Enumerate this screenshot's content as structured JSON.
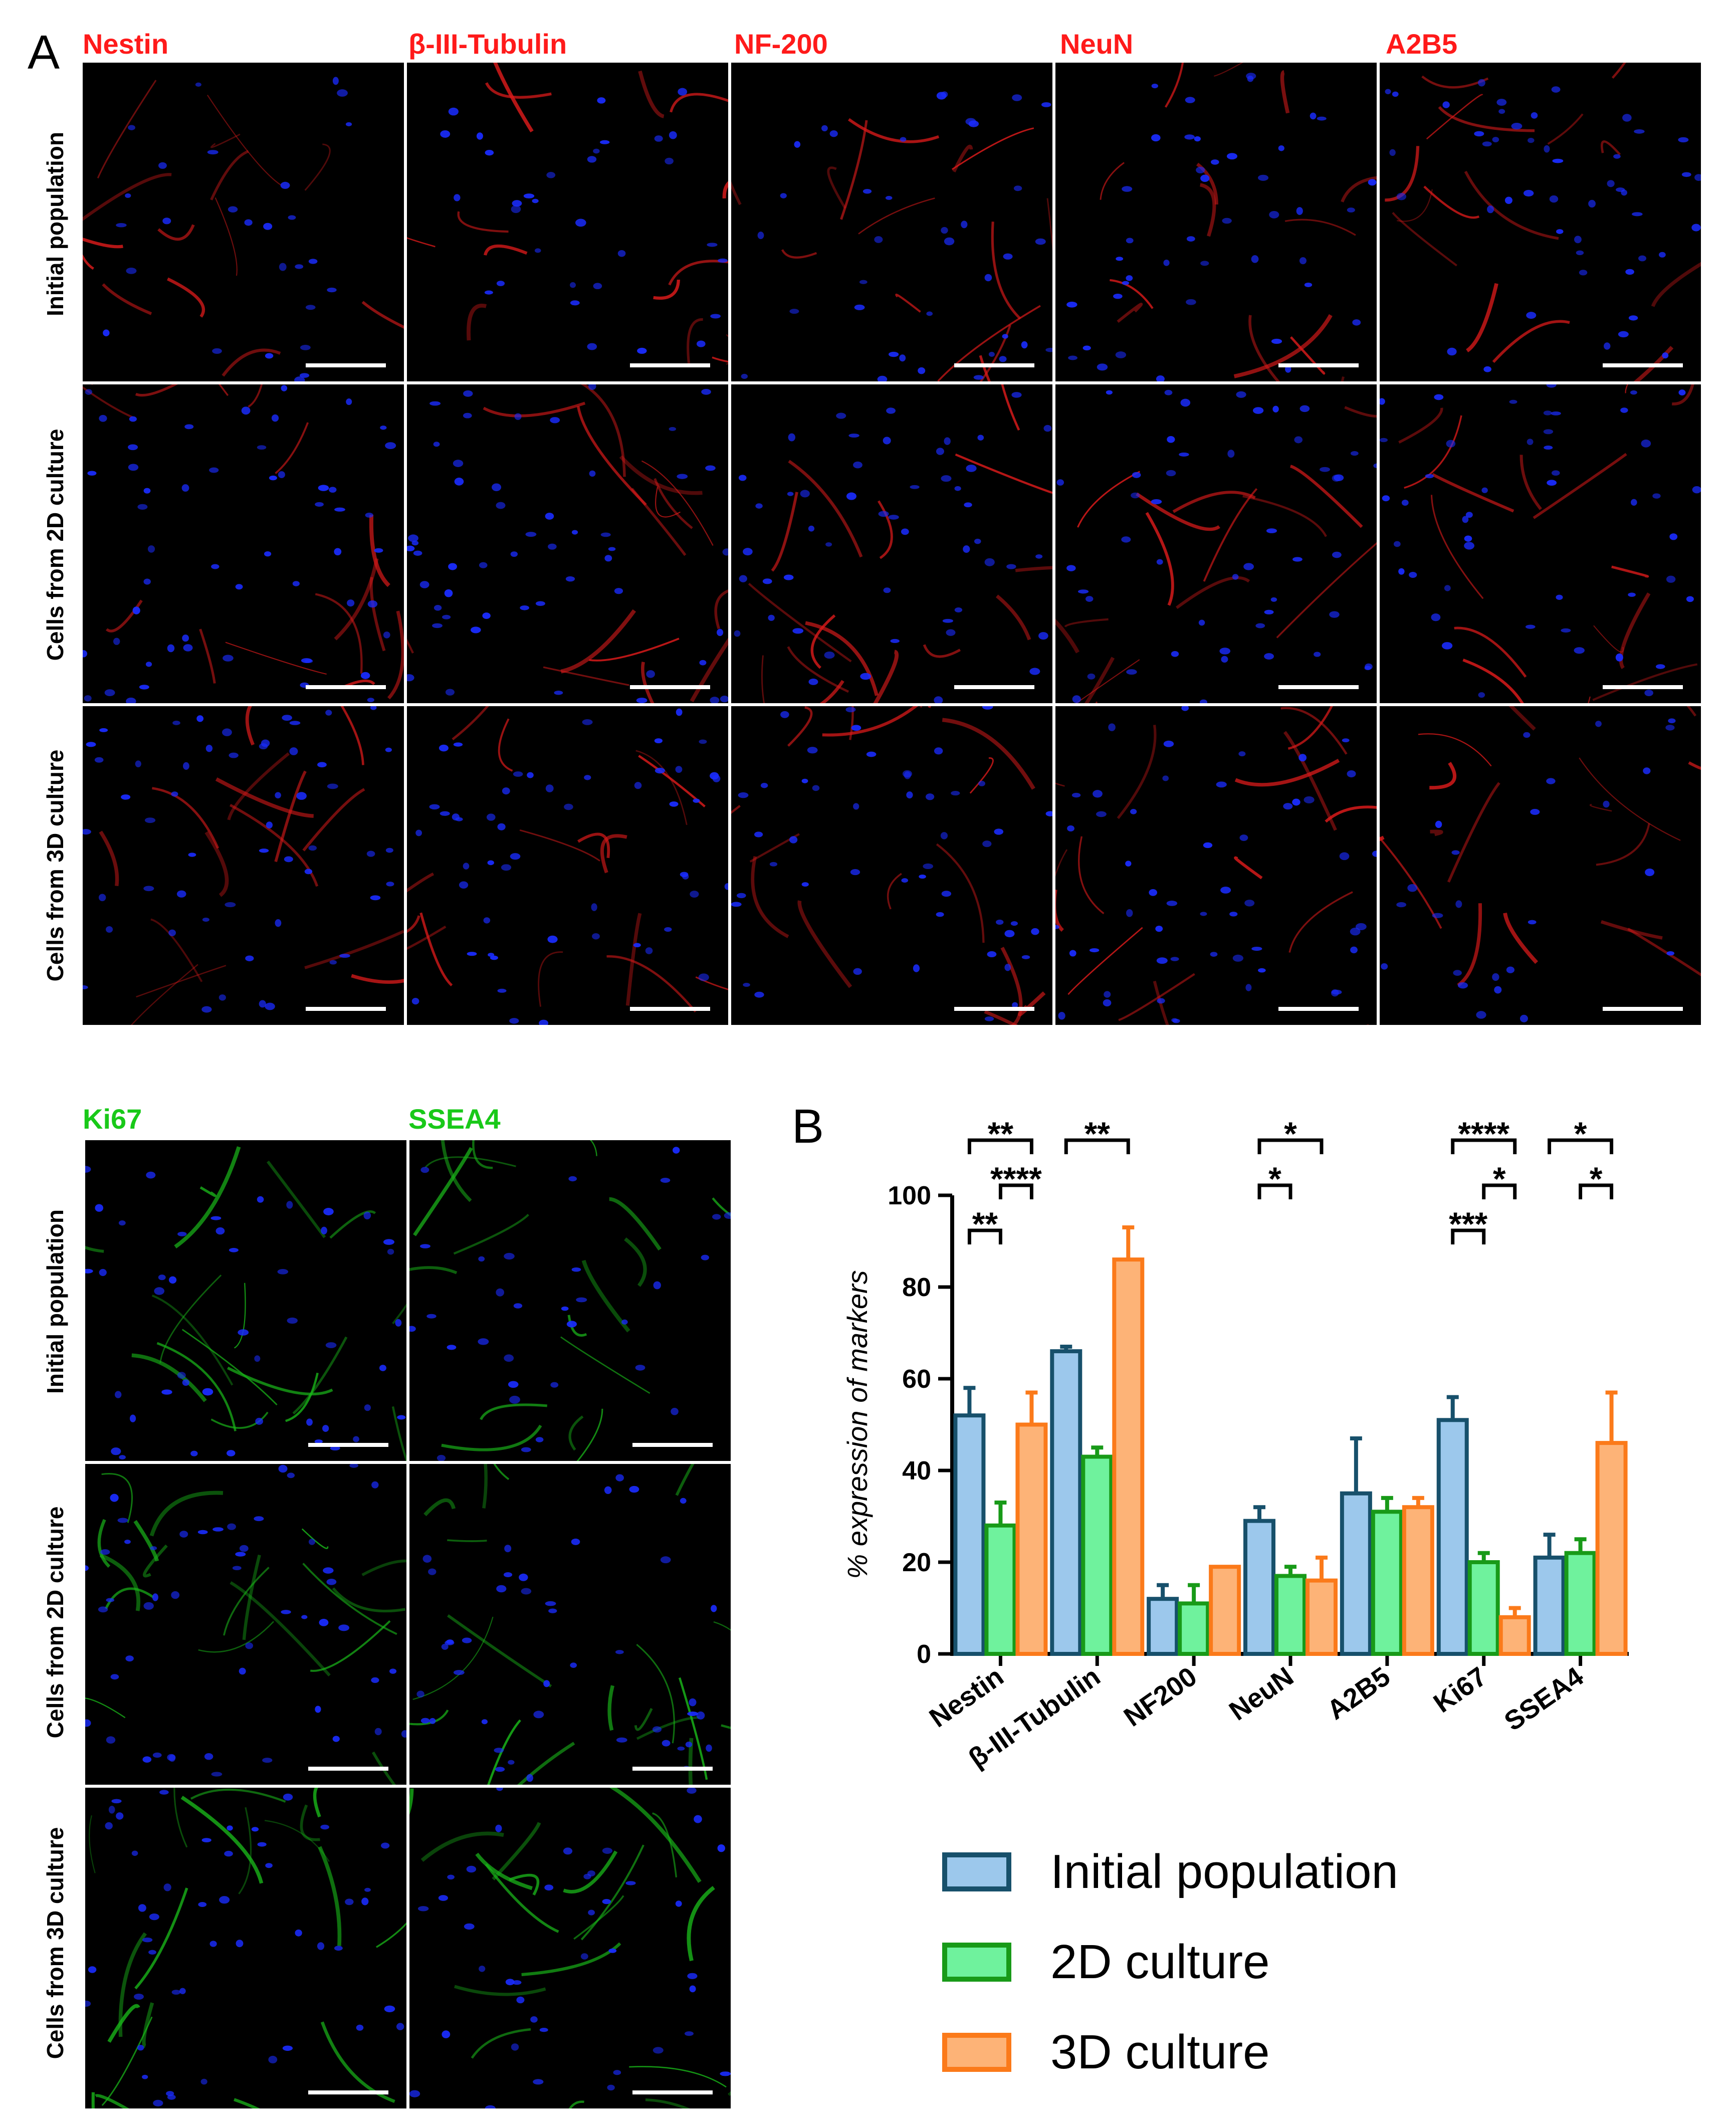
{
  "panel_a": {
    "letter": "A",
    "markers": [
      "Nestin",
      "β-III-Tubulin",
      "NF-200",
      "NeuN",
      "A2B5"
    ],
    "rows": [
      "Initial population",
      "Cells from 2D culture",
      "Cells from 3D culture"
    ],
    "marker_color": "#ff1a1a",
    "stain_color": "#d81a1a",
    "nucleus_color": "#1a2cff"
  },
  "panel_c": {
    "markers": [
      "Ki67",
      "SSEA4"
    ],
    "rows": [
      "Initial population",
      "Cells from 2D culture",
      "Cells from 3D culture"
    ],
    "marker_color": "#19c919",
    "stain_color": "#19b419",
    "nucleus_color": "#1a2cff"
  },
  "chart_data": {
    "type": "bar",
    "panel_letter": "B",
    "categories": [
      "Nestin",
      "β-III-Tubulin",
      "NF200",
      "NeuN",
      "A2B5",
      "Ki67",
      "SSEA4"
    ],
    "ylabel": "% expression of markers",
    "ylim": [
      0,
      100
    ],
    "yticks": [
      0,
      20,
      40,
      60,
      80,
      100
    ],
    "series": [
      {
        "name": "Initial population",
        "fill": "#9cc8ec",
        "stroke": "#17506b",
        "values": [
          52,
          66,
          12,
          29,
          35,
          51,
          21
        ],
        "errors": [
          6,
          1,
          3,
          3,
          12,
          5,
          5
        ]
      },
      {
        "name": "2D culture",
        "fill": "#6ff29d",
        "stroke": "#189a18",
        "values": [
          28,
          43,
          11,
          17,
          31,
          20,
          22
        ],
        "errors": [
          5,
          2,
          4,
          2,
          3,
          2,
          3
        ]
      },
      {
        "name": "3D culture",
        "fill": "#fdb377",
        "stroke": "#fb7a1a",
        "values": [
          50,
          86,
          19,
          16,
          32,
          8,
          46
        ],
        "errors": [
          7,
          7,
          0,
          5,
          2,
          2,
          11
        ]
      }
    ],
    "significance": [
      {
        "category": 0,
        "from": 0,
        "to": 1,
        "label": "**",
        "level": 0
      },
      {
        "category": 0,
        "from": 1,
        "to": 2,
        "label": "****",
        "level": 1
      },
      {
        "category": 0,
        "from": 0,
        "to": 2,
        "label": "**",
        "level": 2
      },
      {
        "category": 1,
        "from": 0,
        "to": 2,
        "label": "**",
        "level": 2
      },
      {
        "category": 3,
        "from": 0,
        "to": 1,
        "label": "*",
        "level": 1
      },
      {
        "category": 3,
        "from": 0,
        "to": 2,
        "label": "*",
        "level": 2
      },
      {
        "category": 5,
        "from": 0,
        "to": 1,
        "label": "***",
        "level": 0
      },
      {
        "category": 5,
        "from": 1,
        "to": 2,
        "label": "*",
        "level": 1
      },
      {
        "category": 5,
        "from": 0,
        "to": 2,
        "label": "****",
        "level": 2
      },
      {
        "category": 6,
        "from": 1,
        "to": 2,
        "label": "*",
        "level": 1
      },
      {
        "category": 6,
        "from": 0,
        "to": 2,
        "label": "*",
        "level": 2
      }
    ]
  }
}
